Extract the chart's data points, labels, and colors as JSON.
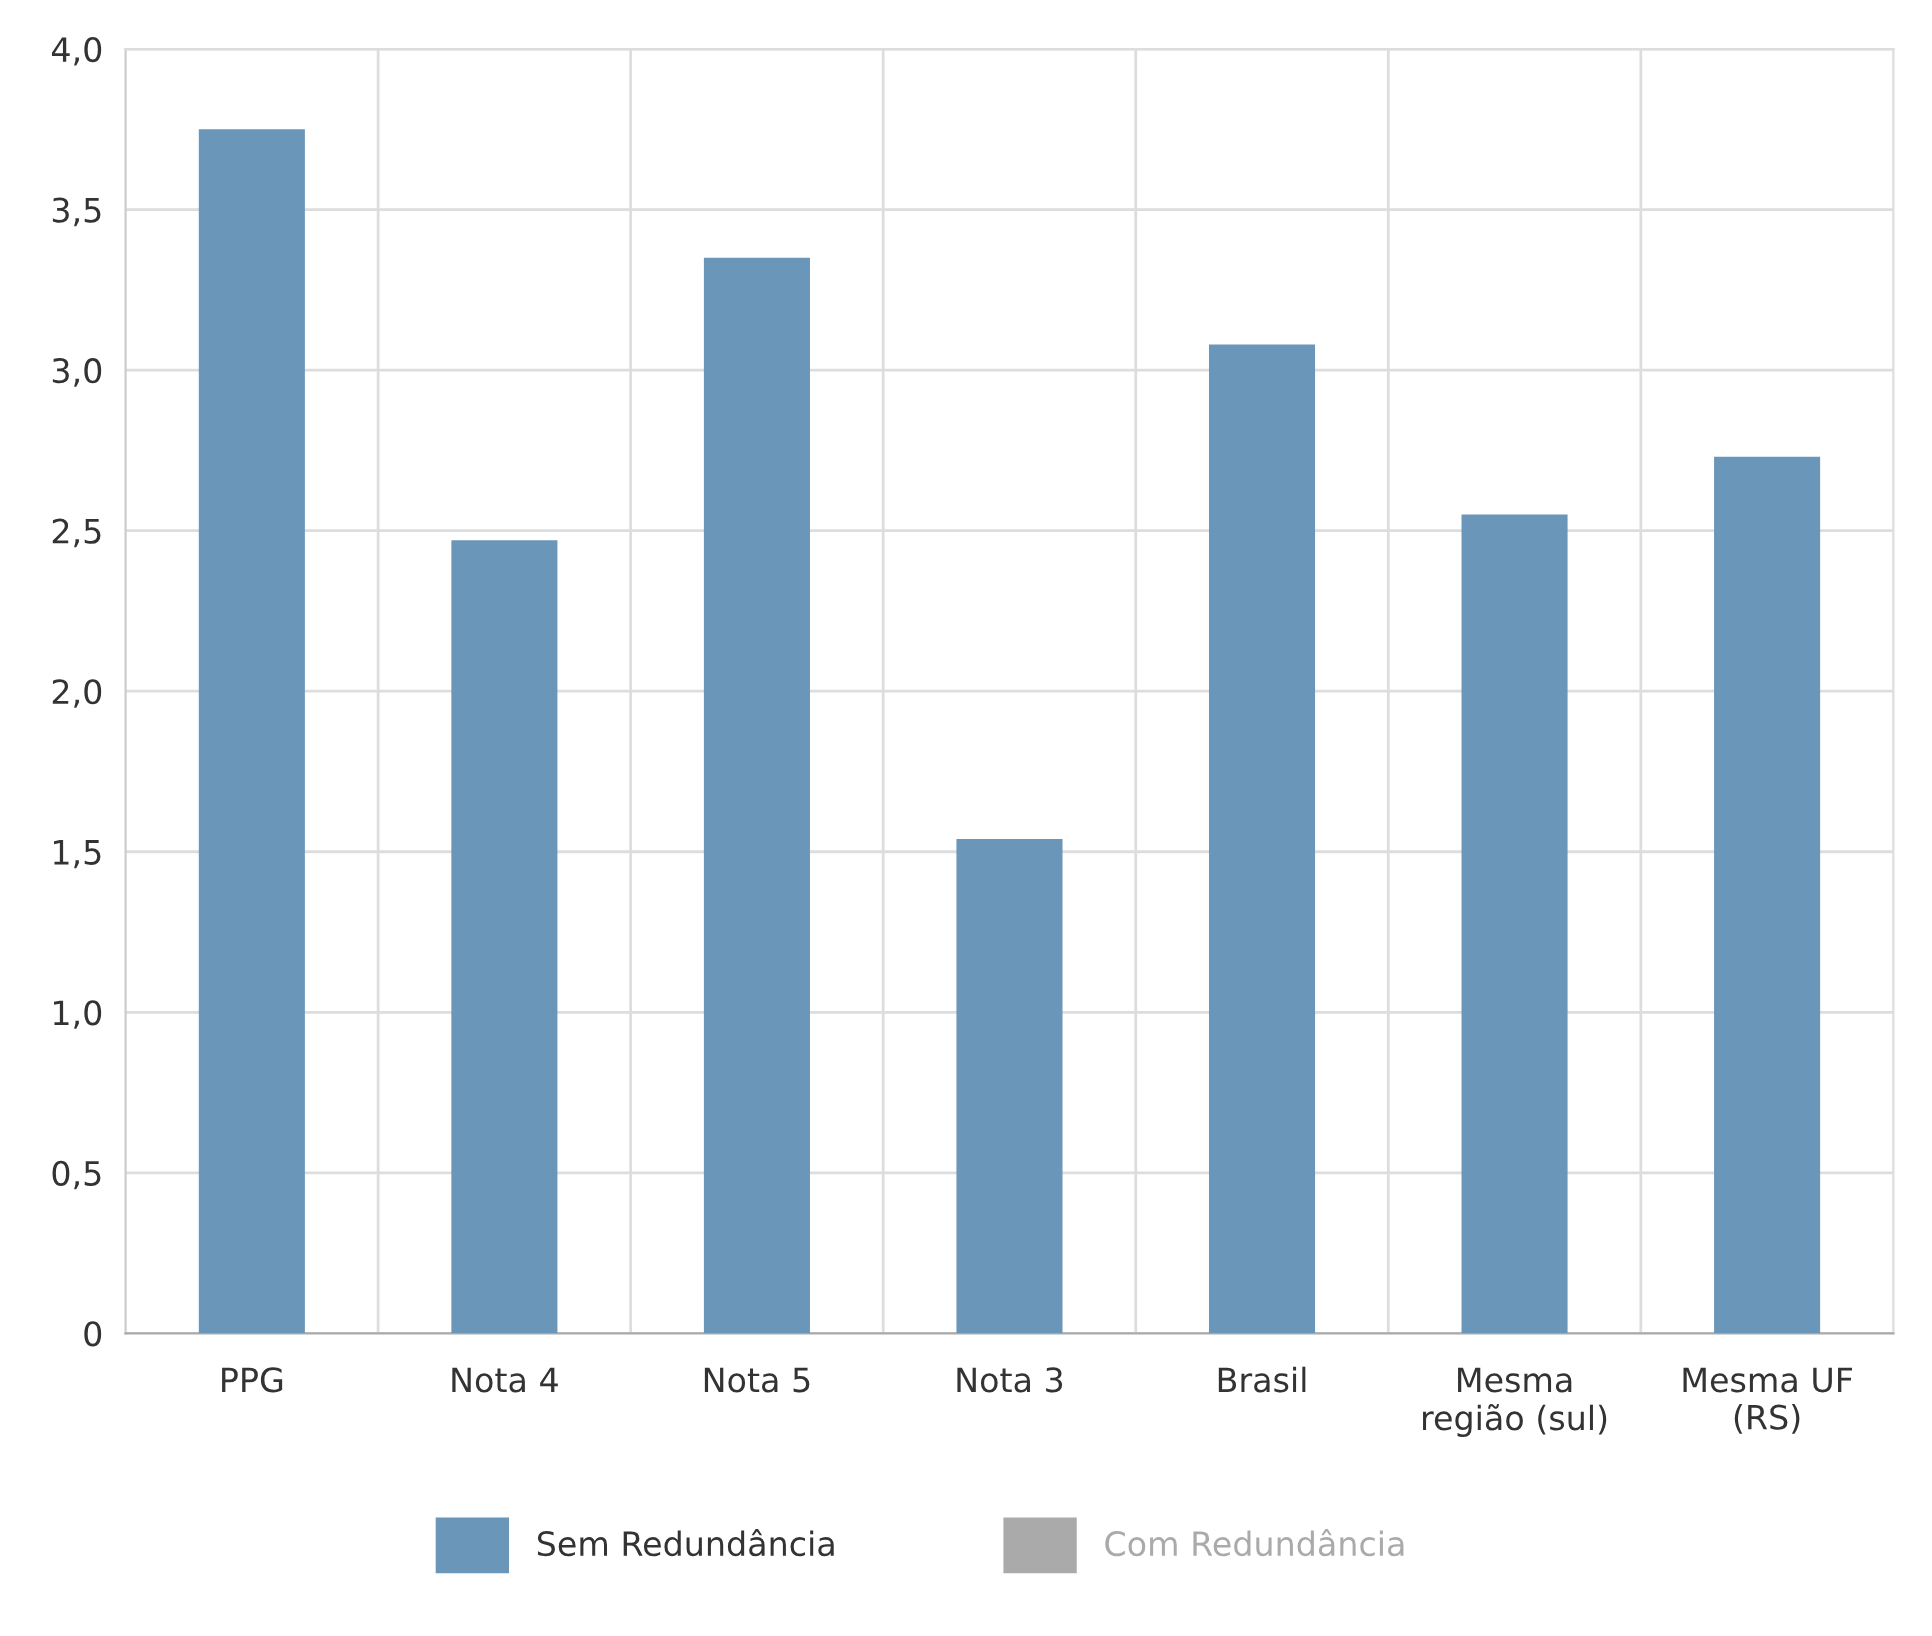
{
  "chart_data": {
    "type": "bar",
    "categories": [
      "PPG",
      "Nota 4",
      "Nota 5",
      "Nota 3",
      "Brasil",
      "Mesma\nregião (sul)",
      "Mesma UF\n(RS)"
    ],
    "series": [
      {
        "name": "Sem Redundância",
        "color": "#6a96b9",
        "values": [
          3.75,
          2.47,
          3.35,
          1.54,
          3.08,
          2.55,
          2.73
        ]
      },
      {
        "name": "Com Redundância",
        "color": "#aaaaaa",
        "values": [
          null,
          null,
          null,
          null,
          null,
          null,
          null
        ]
      }
    ],
    "ylim": [
      0,
      4.0
    ],
    "yticks": [
      {
        "value": 0,
        "label": "0"
      },
      {
        "value": 0.5,
        "label": "0,5"
      },
      {
        "value": 1.0,
        "label": "1,0"
      },
      {
        "value": 1.5,
        "label": "1,5"
      },
      {
        "value": 2.0,
        "label": "2,0"
      },
      {
        "value": 2.5,
        "label": "2,5"
      },
      {
        "value": 3.0,
        "label": "3,0"
      },
      {
        "value": 3.5,
        "label": "3,5"
      },
      {
        "value": 4.0,
        "label": "4,0"
      }
    ],
    "grid": true,
    "legend": "bottom"
  }
}
